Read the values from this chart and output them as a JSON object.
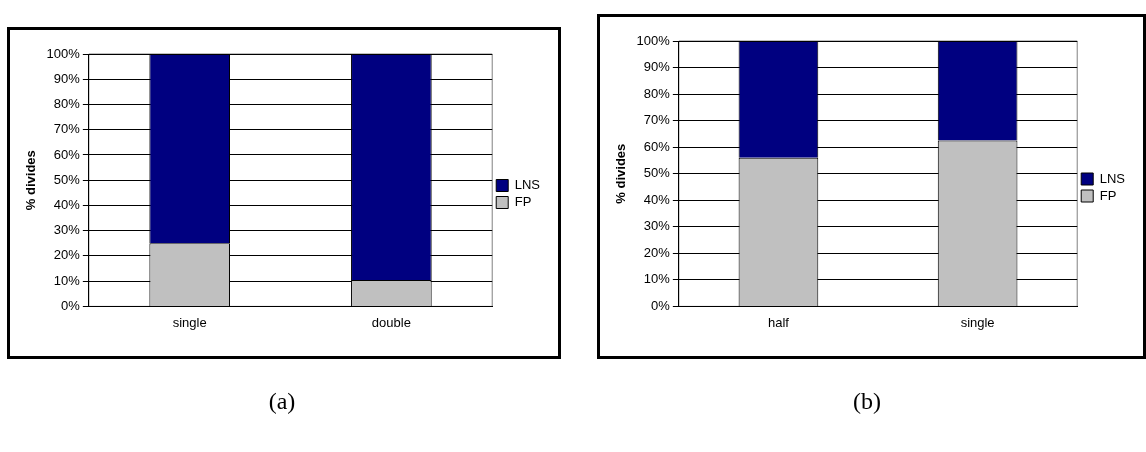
{
  "chart_data": [
    {
      "type": "bar",
      "stacked": true,
      "ylabel": "% divides",
      "categories": [
        "single",
        "double"
      ],
      "series": [
        {
          "name": "FP",
          "color": "#c0c0c0",
          "values": [
            25,
            10.5
          ]
        },
        {
          "name": "LNS",
          "color": "#000080",
          "values": [
            75,
            89.5
          ]
        }
      ],
      "ylim": [
        0,
        100
      ],
      "yticks": [
        {
          "value": 0,
          "label": "0%"
        },
        {
          "value": 10,
          "label": "10%"
        },
        {
          "value": 20,
          "label": "20%"
        },
        {
          "value": 30,
          "label": "30%"
        },
        {
          "value": 40,
          "label": "40%"
        },
        {
          "value": 50,
          "label": "50%"
        },
        {
          "value": 60,
          "label": "60%"
        },
        {
          "value": 70,
          "label": "70%"
        },
        {
          "value": 80,
          "label": "80%"
        },
        {
          "value": 90,
          "label": "90%"
        },
        {
          "value": 100,
          "label": "100%"
        }
      ],
      "grid": "y",
      "legend": "right",
      "annotations": [
        "(a)"
      ]
    },
    {
      "type": "bar",
      "stacked": true,
      "ylabel": "% divides",
      "categories": [
        "half",
        "single"
      ],
      "series": [
        {
          "name": "FP",
          "color": "#c0c0c0",
          "values": [
            56,
            62.5
          ]
        },
        {
          "name": "LNS",
          "color": "#000080",
          "values": [
            44,
            37.5
          ]
        }
      ],
      "ylim": [
        0,
        100
      ],
      "yticks": [
        {
          "value": 0,
          "label": "0%"
        },
        {
          "value": 10,
          "label": "10%"
        },
        {
          "value": 20,
          "label": "20%"
        },
        {
          "value": 30,
          "label": "30%"
        },
        {
          "value": 40,
          "label": "40%"
        },
        {
          "value": 50,
          "label": "50%"
        },
        {
          "value": 60,
          "label": "60%"
        },
        {
          "value": 70,
          "label": "70%"
        },
        {
          "value": 80,
          "label": "80%"
        },
        {
          "value": 90,
          "label": "90%"
        },
        {
          "value": 100,
          "label": "100%"
        }
      ],
      "grid": "y",
      "legend": "right",
      "annotations": [
        "(b)"
      ]
    }
  ]
}
